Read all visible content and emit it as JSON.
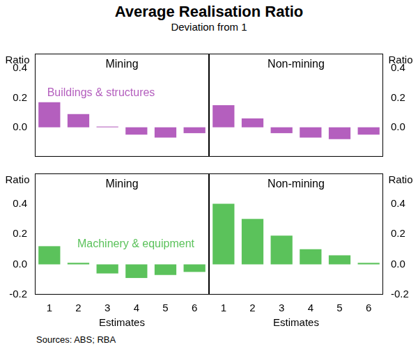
{
  "title": "Average Realisation Ratio",
  "subtitle": "Deviation from 1",
  "source": "Sources: ABS; RBA",
  "chart_data": [
    {
      "type": "bar",
      "title": "Mining",
      "annotation": "Buildings & structures",
      "ylabel": "Ratio",
      "categories": [
        "1",
        "2",
        "3",
        "4",
        "5",
        "6"
      ],
      "values": [
        0.17,
        0.09,
        0.005,
        -0.05,
        -0.07,
        -0.04
      ],
      "color": "#b45fbe",
      "ylim": [
        -0.2,
        0.5
      ],
      "yticks": [
        {
          "value": 0,
          "label": "0.0"
        },
        0.2,
        0.4
      ],
      "grid": false,
      "tick_labels": "y"
    },
    {
      "type": "bar",
      "title": "Non-mining",
      "ylabel": "Ratio",
      "categories": [
        "1",
        "2",
        "3",
        "4",
        "5",
        "6"
      ],
      "values": [
        0.15,
        0.06,
        -0.04,
        -0.07,
        -0.08,
        -0.05
      ],
      "color": "#b45fbe",
      "ylim": [
        -0.2,
        0.5
      ],
      "yticks": [
        {
          "value": 0,
          "label": "0.0"
        },
        0.2,
        0.4
      ],
      "grid": false,
      "tick_labels": "y"
    },
    {
      "type": "bar",
      "title": "Mining",
      "annotation": "Machinery & equipment",
      "ylabel": "Ratio",
      "xlabel": "Estimates",
      "categories": [
        "1",
        "2",
        "3",
        "4",
        "5",
        "6"
      ],
      "values": [
        0.12,
        0.01,
        -0.06,
        -0.09,
        -0.07,
        -0.05
      ],
      "color": "#5bc25b",
      "ylim": [
        -0.2,
        0.6
      ],
      "yticks": [
        -0.2,
        {
          "value": 0,
          "label": "0.0"
        },
        0.2,
        0.4
      ],
      "grid": false,
      "tick_labels": true
    },
    {
      "type": "bar",
      "title": "Non-mining",
      "ylabel": "Ratio",
      "xlabel": "Estimates",
      "categories": [
        "1",
        "2",
        "3",
        "4",
        "5",
        "6"
      ],
      "values": [
        0.4,
        0.3,
        0.19,
        0.1,
        0.06,
        0.01
      ],
      "color": "#5bc25b",
      "ylim": [
        -0.2,
        0.6
      ],
      "yticks": [
        -0.2,
        {
          "value": 0,
          "label": "0.0"
        },
        0.2,
        0.4
      ],
      "grid": false,
      "tick_labels": true
    }
  ]
}
